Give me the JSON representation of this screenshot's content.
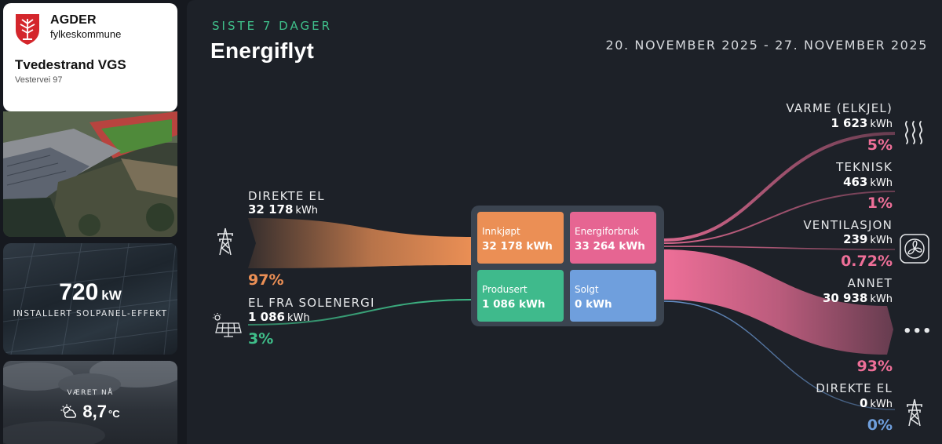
{
  "brand": {
    "org_name": "AGDER",
    "org_sub": "fylkeskommune",
    "school_name": "Tvedestrand VGS",
    "address": "Vestervei 97"
  },
  "solar_card": {
    "value": "720",
    "unit": "kW",
    "label": "INSTALLERT SOLPANEL-EFFEKT"
  },
  "weather": {
    "label": "VÆRET NÅ",
    "temp": "8,7",
    "unit": "°C",
    "icon": "partly-sunny-icon"
  },
  "header": {
    "overline": "SISTE 7 DAGER",
    "title": "Energiflyt",
    "date_range": "20. NOVEMBER 2025 - 27. NOVEMBER 2025"
  },
  "sources": [
    {
      "name": "DIREKTE EL",
      "value": "32 178",
      "unit": "kWh",
      "percent": "97%",
      "percent_value": 97,
      "color": "#eb8f55",
      "icon": "power-pylon-icon"
    },
    {
      "name": "EL FRA SOLENERGI",
      "value": "1 086",
      "unit": "kWh",
      "percent": "3%",
      "percent_value": 3,
      "color": "#3fbf8a",
      "icon": "solar-panel-icon"
    }
  ],
  "hub": {
    "innkjopt": {
      "label": "Innkjøpt",
      "value": "32 178 kWh",
      "color": "#eb8f55"
    },
    "forbruk": {
      "label": "Energiforbruk",
      "value": "33 264 kWh",
      "color": "#e66592"
    },
    "produsert": {
      "label": "Produsert",
      "value": "1 086 kWh",
      "color": "#3fba8c"
    },
    "solgt": {
      "label": "Solgt",
      "value": "0 kWh",
      "color": "#6f9fdd"
    }
  },
  "consumers": [
    {
      "name": "VARME (ELKJEL)",
      "value": "1 623",
      "unit": "kWh",
      "percent": "5%",
      "percent_value": 5,
      "icon": "heat-waves-icon"
    },
    {
      "name": "TEKNISK",
      "value": "463",
      "unit": "kWh",
      "percent": "1%",
      "percent_value": 1,
      "icon": ""
    },
    {
      "name": "VENTILASJON",
      "value": "239",
      "unit": "kWh",
      "percent": "0.72%",
      "percent_value": 0.72,
      "icon": "fan-icon"
    },
    {
      "name": "ANNET",
      "value": "30 938",
      "unit": "kWh",
      "percent": "93%",
      "percent_value": 93,
      "icon": "more-dots-icon"
    },
    {
      "name": "DIREKTE EL",
      "value": "0",
      "unit": "kWh",
      "percent": "0%",
      "percent_value": 0,
      "icon": "power-pylon-icon"
    }
  ],
  "colors": {
    "consumption": "#ee6f98",
    "export": "#6f9fdd",
    "accent_green": "#3fbf8a"
  }
}
